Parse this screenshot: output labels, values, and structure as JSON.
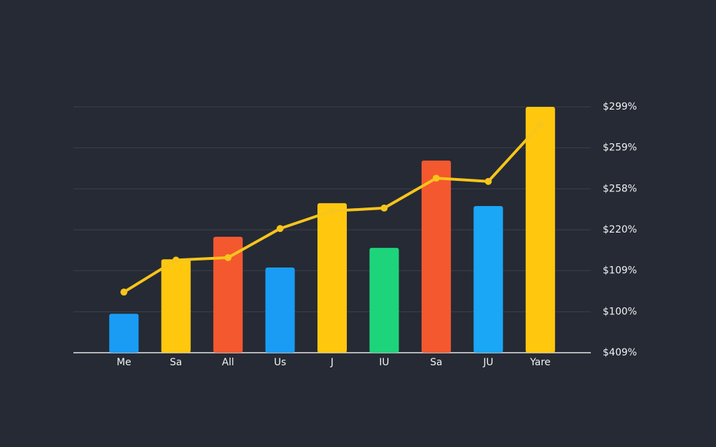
{
  "chart_data": {
    "type": "bar",
    "categories": [
      "Me",
      "Sa",
      "All",
      "Us",
      "J",
      "IU",
      "Sa",
      "JU",
      "Yare"
    ],
    "series": [
      {
        "type": "bar",
        "colors": [
          "#1a9cf5",
          "#ffc80f",
          "#f4582f",
          "#1a9cf5",
          "#ffc80f",
          "#1ed47a",
          "#f4582f",
          "#1aa7f5",
          "#ffc80f"
        ],
        "values": [
          0.95,
          2.28,
          2.83,
          2.08,
          3.65,
          2.56,
          4.69,
          3.58,
          6.0
        ]
      },
      {
        "type": "line",
        "color": "#f7c51b",
        "values": [
          1.48,
          2.26,
          2.32,
          3.03,
          3.46,
          3.53,
          4.26,
          4.18,
          5.57
        ]
      }
    ],
    "ylim": [
      0,
      6
    ],
    "yticks": [
      {
        "value": 0,
        "label": "$409%"
      },
      {
        "value": 1,
        "label": "$100%"
      },
      {
        "value": 2,
        "label": "$109%"
      },
      {
        "value": 3,
        "label": "$220%"
      },
      {
        "value": 4,
        "label": "$258%"
      },
      {
        "value": 5,
        "label": "$259%"
      },
      {
        "value": 6,
        "label": "$299%"
      }
    ],
    "grid": true
  }
}
